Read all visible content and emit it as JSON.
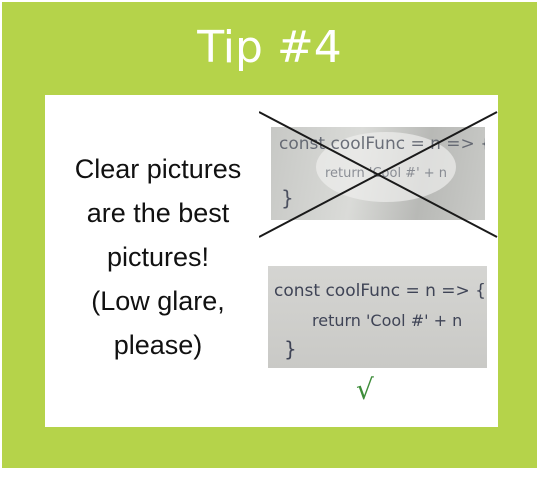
{
  "title": "Tip #4",
  "caption": [
    "Clear pictures",
    "are the best",
    "pictures!",
    "(Low glare,",
    "please)"
  ],
  "bad_photo": {
    "line1": "const coolFunc = n => {",
    "line2": "return 'Cool #' + n",
    "line3": "}"
  },
  "good_photo": {
    "line1": "const coolFunc = n => {",
    "line2": "return 'Cool #' + n",
    "line3": "}"
  },
  "check_mark": "√",
  "colors": {
    "frame": "#b5d34a",
    "title_text": "#ffffff",
    "check": "#3e8d3a",
    "cross": "#1a1a1a"
  }
}
